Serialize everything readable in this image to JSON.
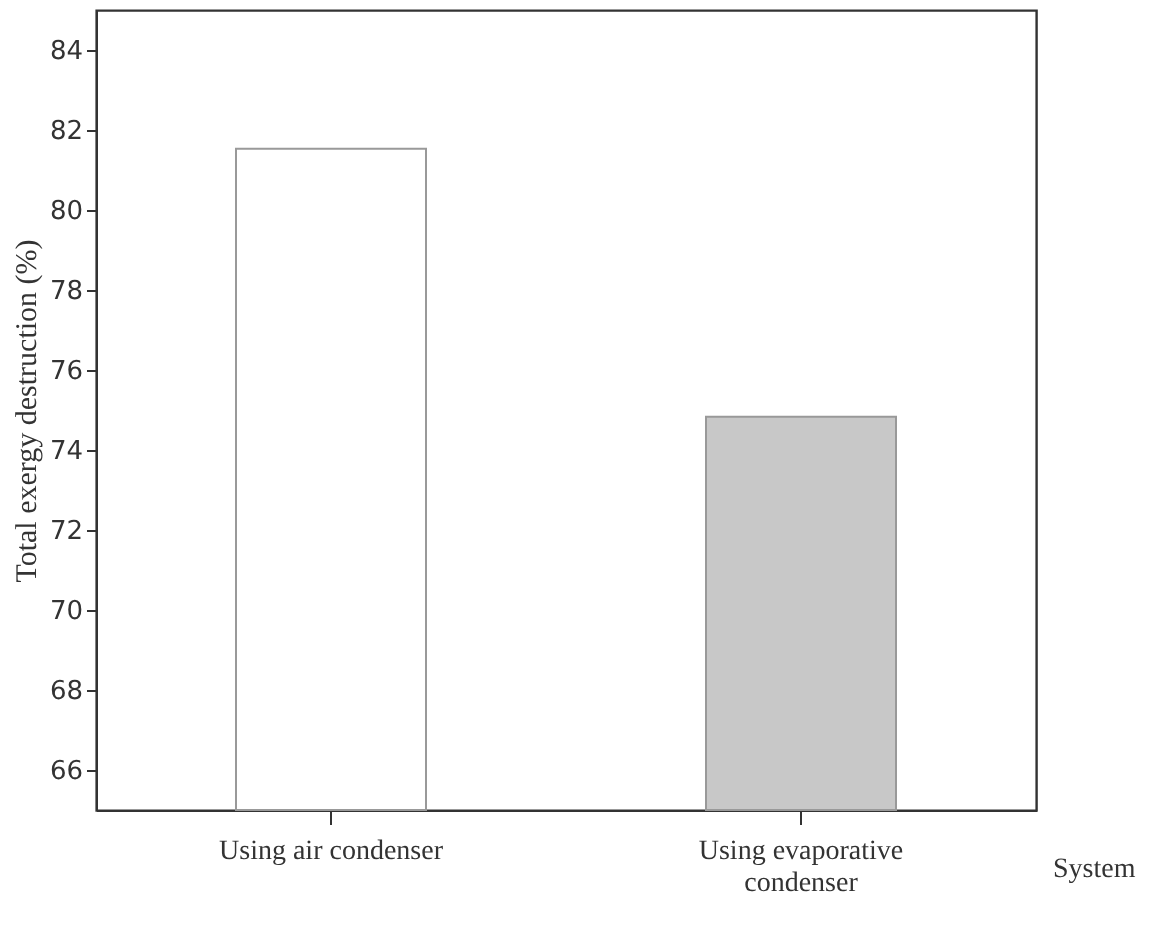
{
  "chart_data": {
    "type": "bar",
    "xlabel": "System",
    "ylabel": "Total exergy destruction (%)",
    "categories": [
      "Using air condenser",
      "Using evaporative condenser"
    ],
    "values": [
      81.53,
      74.83
    ],
    "colors": [
      "#ffffff",
      "#c8c8c8"
    ],
    "ylim": [
      65,
      85
    ],
    "yticks": [
      66,
      68,
      70,
      72,
      74,
      76,
      78,
      80,
      82,
      84
    ],
    "grid": false
  }
}
